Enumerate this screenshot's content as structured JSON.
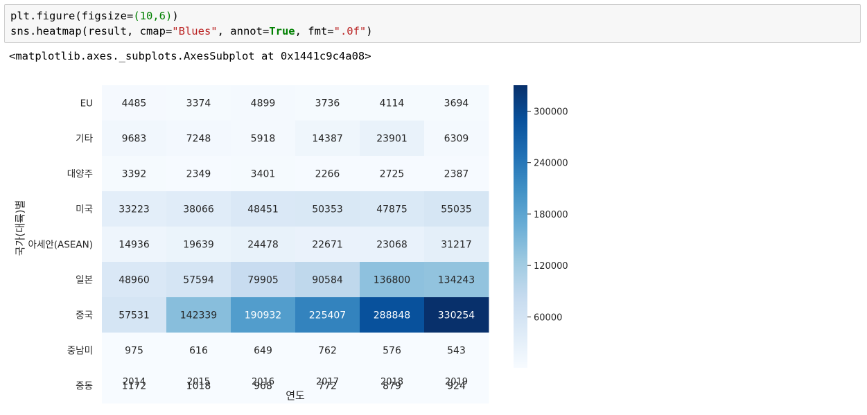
{
  "code_cell": {
    "line1": {
      "a": "plt.figure(figsize=",
      "b": "(10,6)",
      "c": ")"
    },
    "line2": {
      "a": "sns.heatmap(result, cmap=",
      "b": "\"Blues\"",
      "c": ", annot=",
      "d": "True",
      "e": ", fmt=",
      "f": "\".0f\"",
      "g": ")"
    }
  },
  "output_text": "<matplotlib.axes._subplots.AxesSubplot at 0x1441c9c4a08>",
  "chart_data": {
    "type": "heatmap",
    "colormap": "Blues",
    "xlabel": "연도",
    "ylabel": "국가(대륙)별",
    "x": [
      "2014",
      "2015",
      "2016",
      "2017",
      "2018",
      "2019"
    ],
    "y": [
      "EU",
      "기타",
      "대양주",
      "미국",
      "아세안(ASEAN)",
      "일본",
      "중국",
      "중남미",
      "중동"
    ],
    "values": [
      [
        4485,
        3374,
        4899,
        3736,
        4114,
        3694
      ],
      [
        9683,
        7248,
        5918,
        14387,
        23901,
        6309
      ],
      [
        3392,
        2349,
        3401,
        2266,
        2725,
        2387
      ],
      [
        33223,
        38066,
        48451,
        50353,
        47875,
        55035
      ],
      [
        14936,
        19639,
        24478,
        22671,
        23068,
        31217
      ],
      [
        48960,
        57594,
        79905,
        90584,
        136800,
        134243
      ],
      [
        57531,
        142339,
        190932,
        225407,
        288848,
        330254
      ],
      [
        975,
        616,
        649,
        762,
        576,
        543
      ],
      [
        1172,
        1018,
        968,
        772,
        879,
        924
      ]
    ],
    "vmin": 543,
    "vmax": 330254,
    "colorbar_ticks": [
      60000,
      120000,
      180000,
      240000,
      300000
    ]
  }
}
